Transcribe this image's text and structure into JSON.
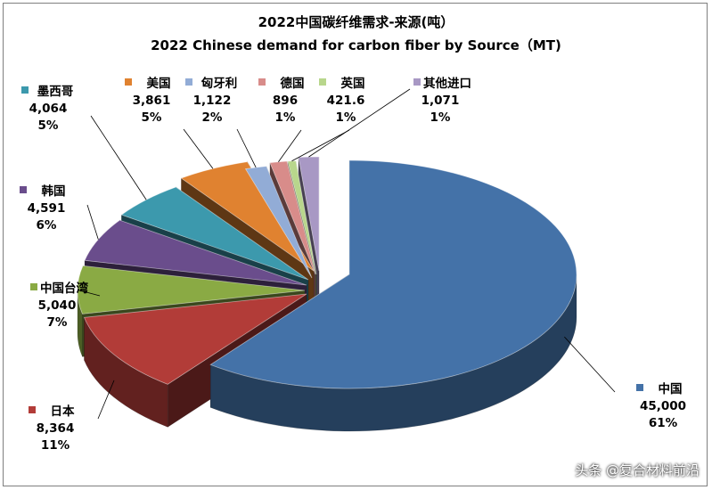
{
  "chart_data": {
    "type": "pie",
    "title": "2022中国碳纤维需求-来源(吨）",
    "subtitle": "2022 Chinese demand for carbon fiber by Source（MT)",
    "slices": [
      {
        "name": "中国",
        "value_label": "45,000",
        "value": 45000,
        "percent": "61%",
        "color": "#4472a8"
      },
      {
        "name": "日本",
        "value_label": "8,364",
        "value": 8364,
        "percent": "11%",
        "color": "#b23c38"
      },
      {
        "name": "中国台湾",
        "value_label": "5,040",
        "value": 5040,
        "percent": "7%",
        "color": "#8aaa44"
      },
      {
        "name": "韩国",
        "value_label": "4,591",
        "value": 4591,
        "percent": "6%",
        "color": "#6a4d8c"
      },
      {
        "name": "墨西哥",
        "value_label": "4,064",
        "value": 4064,
        "percent": "5%",
        "color": "#3c99ad"
      },
      {
        "name": "美国",
        "value_label": "3,861",
        "value": 3861,
        "percent": "5%",
        "color": "#e08230"
      },
      {
        "name": "匈牙利",
        "value_label": "1,122",
        "value": 1122,
        "percent": "2%",
        "color": "#92acd6"
      },
      {
        "name": "德国",
        "value_label": "896",
        "value": 896,
        "percent": "1%",
        "color": "#d88c8a"
      },
      {
        "name": "英国",
        "value_label": "421.6",
        "value": 421.6,
        "percent": "1%",
        "color": "#b8d68c"
      },
      {
        "name": "其他进口",
        "value_label": "1,071",
        "value": 1071,
        "percent": "1%",
        "color": "#a898c4"
      }
    ]
  },
  "watermark": "头条 @复合材料前沿"
}
